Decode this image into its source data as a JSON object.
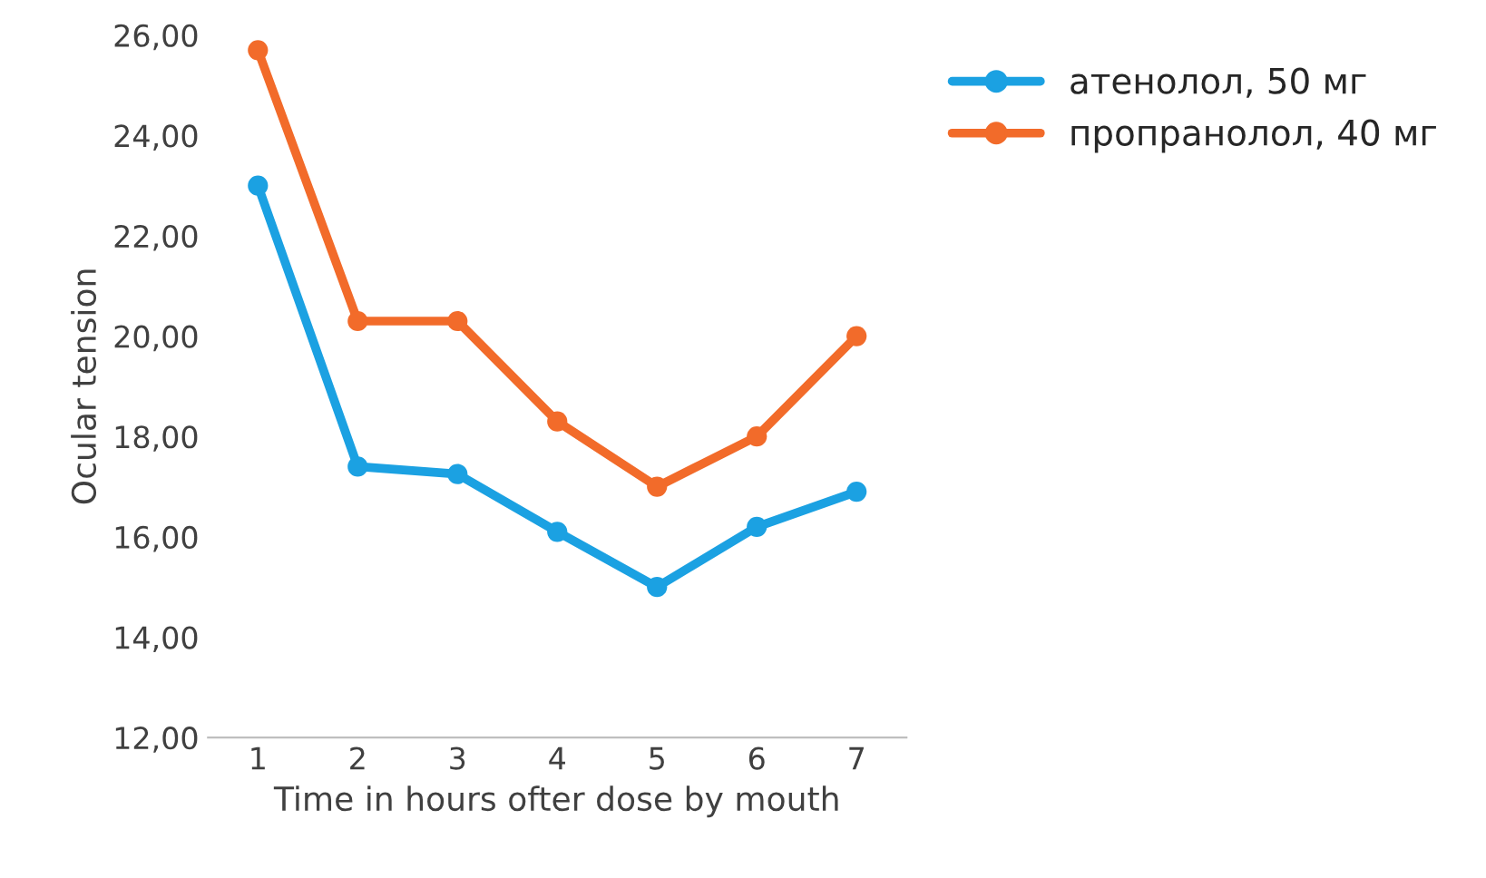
{
  "chart_data": {
    "type": "line",
    "xlabel": "Time in hours ofter dose by mouth",
    "ylabel": "Ocular tension",
    "categories": [
      "1",
      "2",
      "3",
      "4",
      "5",
      "6",
      "7"
    ],
    "series": [
      {
        "name": "атенолол, 50 мг",
        "color": "#1ba1e2",
        "values": [
          23.0,
          17.4,
          17.25,
          16.1,
          15.0,
          16.2,
          16.9
        ]
      },
      {
        "name": "пропранолол, 40 мг",
        "color": "#f26b2a",
        "values": [
          25.7,
          20.3,
          20.3,
          18.3,
          17.0,
          18.0,
          20.0
        ]
      }
    ],
    "ylim": [
      12,
      26
    ],
    "yticks": [
      {
        "value": 12,
        "label": "12,00"
      },
      {
        "value": 14,
        "label": "14,00"
      },
      {
        "value": 16,
        "label": "16,00"
      },
      {
        "value": 18,
        "label": "18,00"
      },
      {
        "value": 20,
        "label": "20,00"
      },
      {
        "value": 22,
        "label": "22,00"
      },
      {
        "value": 24,
        "label": "24,00"
      },
      {
        "value": 26,
        "label": "26,00"
      }
    ],
    "grid": false,
    "legend": "top right",
    "marker": "circle",
    "line_style": "solid"
  }
}
